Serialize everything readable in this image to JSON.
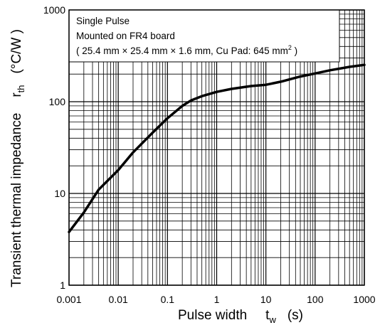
{
  "chart_data": {
    "type": "line",
    "x_scale": "log",
    "y_scale": "log",
    "xlim": [
      0.001,
      1000
    ],
    "ylim": [
      1,
      1000
    ],
    "grid": true,
    "x_tick_labels": [
      "0.001",
      "0.01",
      "0.1",
      "1",
      "10",
      "100",
      "1000"
    ],
    "y_tick_labels": [
      "1",
      "10",
      "100",
      "1000"
    ],
    "xlabel": {
      "main": "Pulse width",
      "symbol": "t",
      "subscript": "w",
      "unit": "(s)"
    },
    "ylabel": {
      "main": "Transient thermal impedance",
      "symbol": "r",
      "subscript": "th",
      "unit": "(°C/W )"
    },
    "annotation": {
      "line1": "Single Pulse",
      "line2": "Mounted on FR4 board",
      "line3": "( 25.4 mm × 25.4 mm × 1.6 mm, Cu Pad: 645 mm",
      "line3_sup": "2",
      "line3_end": " )"
    },
    "series": [
      {
        "x": [
          0.001,
          0.002,
          0.004,
          0.01,
          0.02,
          0.05,
          0.1,
          0.2,
          0.3,
          0.5,
          1,
          2,
          5,
          10,
          20,
          50,
          100,
          200,
          500,
          1000
        ],
        "y": [
          3.8,
          6.2,
          11,
          18,
          28,
          46,
          66,
          90,
          103,
          115,
          128,
          138,
          148,
          153,
          165,
          188,
          203,
          220,
          240,
          252
        ]
      }
    ]
  }
}
